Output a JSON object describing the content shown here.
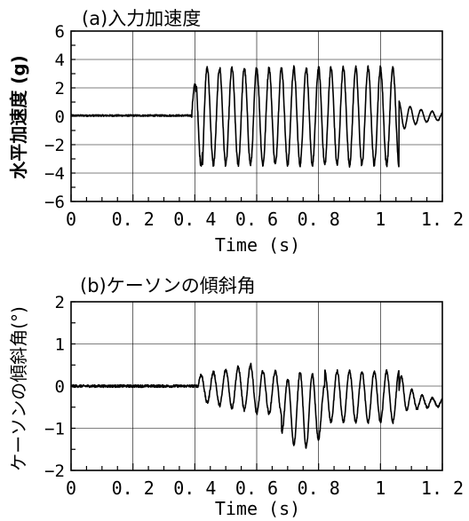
{
  "chart_data": [
    {
      "type": "line",
      "title": "(a)入力加速度",
      "xlabel": "Time (s)",
      "ylabel": "水平加速度 (g)",
      "xlim": [
        0,
        1.2
      ],
      "ylim": [
        -6,
        6
      ],
      "x_ticks": [
        0,
        0.2,
        0.4,
        0.6,
        0.8,
        1,
        1.2
      ],
      "x_tick_labels": [
        "0",
        "0. 2",
        "0. 4",
        "0. 6",
        "0. 8",
        "1",
        "1. 2"
      ],
      "y_ticks": [
        -6,
        -4,
        -2,
        0,
        2,
        4,
        6
      ],
      "y_tick_labels": [
        "−6",
        "−4",
        "−2",
        "0",
        "2",
        "4",
        "6"
      ],
      "grid": true,
      "signal": {
        "quiet_until": 0.39,
        "quiet_level": 0.05,
        "excitation_start": 0.39,
        "excitation_end": 1.06,
        "frequency_hz": 25,
        "amplitude": 3.4,
        "decay_amplitude": 0.9,
        "decay_end": 1.2
      },
      "series": [
        {
          "x": [
            0,
            0.1,
            0.2,
            0.3,
            0.38,
            0.39,
            0.4,
            0.41,
            0.42,
            0.43,
            0.5,
            0.6,
            0.7,
            0.8,
            0.9,
            1.0,
            1.05,
            1.06,
            1.08,
            1.1,
            1.15,
            1.2
          ],
          "y": [
            0.05,
            0.05,
            0.05,
            0.05,
            0.05,
            2.1,
            -3.0,
            3.8,
            -3.5,
            -5.0,
            3.5,
            3.6,
            3.5,
            3.5,
            3.7,
            3.5,
            3.6,
            1.7,
            -1.2,
            1.0,
            -0.6,
            0.3
          ]
        }
      ]
    },
    {
      "type": "line",
      "title": "(b)ケーソンの傾斜角",
      "xlabel": "Time (s)",
      "ylabel": "ケーソンの傾斜角(°)",
      "xlim": [
        0,
        1.2
      ],
      "ylim": [
        -2,
        2
      ],
      "x_ticks": [
        0,
        0.2,
        0.4,
        0.6,
        0.8,
        1,
        1.2
      ],
      "x_tick_labels": [
        "0",
        "0. 2",
        "0. 4",
        "0. 6",
        "0. 8",
        "1",
        "1. 2"
      ],
      "y_ticks": [
        -2,
        -1,
        0,
        1,
        2
      ],
      "y_tick_labels": [
        "−2",
        "−1",
        "0",
        "1",
        "2"
      ],
      "grid": true,
      "signal": {
        "quiet_until": 0.41,
        "quiet_level": 0.0,
        "excitation_start": 0.41,
        "excitation_end": 1.06,
        "frequency_hz": 25,
        "decay_end": 1.2,
        "final_level": -0.4
      },
      "series": [
        {
          "x": [
            0,
            0.1,
            0.2,
            0.3,
            0.4,
            0.42,
            0.5,
            0.6,
            0.7,
            0.72,
            0.75,
            0.8,
            0.9,
            1.0,
            1.06,
            1.1,
            1.2
          ],
          "y": [
            0.0,
            0.0,
            -0.05,
            0.0,
            0.03,
            0.25,
            0.35,
            0.55,
            0.0,
            -1.7,
            -1.8,
            -1.2,
            -0.85,
            -0.9,
            0.0,
            -0.3,
            -0.4
          ]
        }
      ]
    }
  ]
}
